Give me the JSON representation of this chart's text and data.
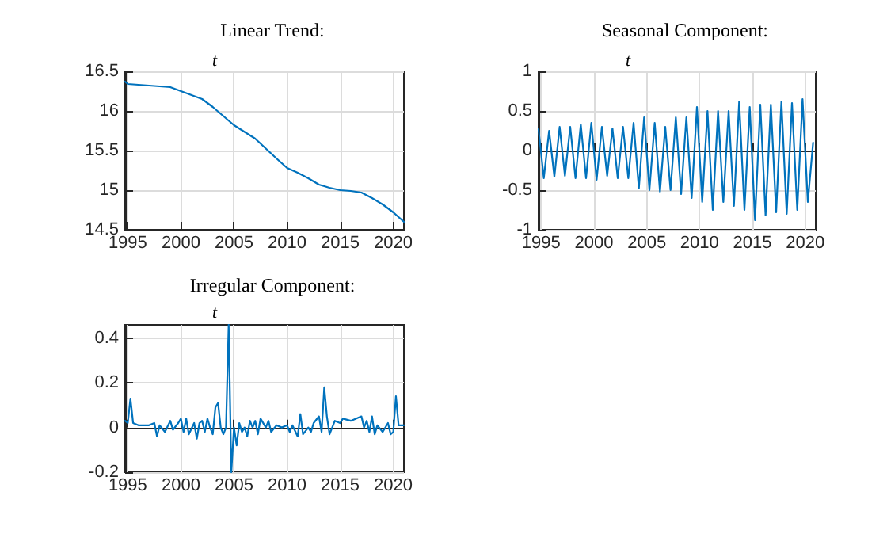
{
  "chart_data": [
    {
      "type": "line",
      "title": "Linear Trend:",
      "subtitle": "t",
      "grid": true,
      "xlim": [
        1994.75,
        2021
      ],
      "xticks": [
        1995,
        2000,
        2005,
        2010,
        2015,
        2020
      ],
      "ylim": [
        14.5,
        16.5
      ],
      "yticks": [
        14.5,
        15,
        15.5,
        16,
        16.5
      ],
      "series": [
        {
          "color": "#0072bd",
          "x": [
            1994.75,
            1995,
            1997,
            1999,
            2000,
            2002,
            2003,
            2005,
            2007,
            2009,
            2010,
            2011,
            2012,
            2013,
            2014,
            2015,
            2016,
            2017,
            2018,
            2019,
            2020,
            2021
          ],
          "values": [
            16.37,
            16.34,
            16.32,
            16.3,
            16.25,
            16.15,
            16.05,
            15.82,
            15.65,
            15.4,
            15.28,
            15.22,
            15.15,
            15.07,
            15.03,
            15.0,
            14.99,
            14.97,
            14.9,
            14.82,
            14.72,
            14.6
          ]
        }
      ]
    },
    {
      "type": "line",
      "title": "Seasonal Component:",
      "subtitle": "t",
      "grid": true,
      "xlim": [
        1994.75,
        2021
      ],
      "xticks": [
        1995,
        2000,
        2005,
        2010,
        2015,
        2020
      ],
      "ylim": [
        -1,
        1
      ],
      "yticks": [
        -1,
        -0.5,
        0,
        0.5,
        1
      ],
      "series": [
        {
          "color": "#0072bd",
          "x": [
            1994.75,
            1995.25,
            1995.75,
            1996.25,
            1996.75,
            1997.25,
            1997.75,
            1998.25,
            1998.75,
            1999.25,
            1999.75,
            2000.25,
            2000.75,
            2001.25,
            2001.75,
            2002.25,
            2002.75,
            2003.25,
            2003.75,
            2004.25,
            2004.75,
            2005.25,
            2005.75,
            2006.25,
            2006.75,
            2007.25,
            2007.75,
            2008.25,
            2008.75,
            2009.25,
            2009.75,
            2010.25,
            2010.75,
            2011.25,
            2011.75,
            2012.25,
            2012.75,
            2013.25,
            2013.75,
            2014.25,
            2014.75,
            2015.25,
            2015.75,
            2016.25,
            2016.75,
            2017.25,
            2017.75,
            2018.25,
            2018.75,
            2019.25,
            2019.75,
            2020.25,
            2020.75
          ],
          "values": [
            0.27,
            -0.35,
            0.25,
            -0.33,
            0.3,
            -0.32,
            0.3,
            -0.35,
            0.33,
            -0.35,
            0.35,
            -0.37,
            0.3,
            -0.32,
            0.28,
            -0.35,
            0.3,
            -0.35,
            0.35,
            -0.48,
            0.42,
            -0.5,
            0.35,
            -0.52,
            0.3,
            -0.5,
            0.42,
            -0.55,
            0.42,
            -0.6,
            0.55,
            -0.65,
            0.5,
            -0.75,
            0.5,
            -0.65,
            0.5,
            -0.7,
            0.62,
            -0.75,
            0.55,
            -0.88,
            0.58,
            -0.82,
            0.58,
            -0.78,
            0.62,
            -0.8,
            0.6,
            -0.75,
            0.65,
            -0.65,
            0.1
          ]
        }
      ]
    },
    {
      "type": "line",
      "title": "Irregular Component:",
      "subtitle": "t",
      "grid": true,
      "xlim": [
        1994.75,
        2021
      ],
      "xticks": [
        1995,
        2000,
        2005,
        2010,
        2015,
        2020
      ],
      "ylim": [
        -0.2,
        0.46
      ],
      "yticks": [
        -0.2,
        0,
        0.2,
        0.4
      ],
      "series": [
        {
          "color": "#0072bd",
          "x": [
            1994.75,
            1995,
            1995.25,
            1995.5,
            1996,
            1997,
            1997.5,
            1997.75,
            1998,
            1998.5,
            1999,
            1999.25,
            1999.75,
            2000,
            2000.25,
            2000.5,
            2000.75,
            2001.25,
            2001.5,
            2001.75,
            2002,
            2002.25,
            2002.5,
            2002.75,
            2003,
            2003.25,
            2003.5,
            2003.75,
            2004,
            2004.25,
            2004.5,
            2004.75,
            2005,
            2005.25,
            2005.5,
            2005.75,
            2006,
            2006.25,
            2006.5,
            2006.75,
            2007,
            2007.25,
            2007.5,
            2008,
            2008.25,
            2008.5,
            2009,
            2009.5,
            2010,
            2010.25,
            2010.5,
            2011,
            2011.25,
            2011.5,
            2012,
            2012.25,
            2012.5,
            2013,
            2013.25,
            2013.5,
            2013.75,
            2014,
            2014.25,
            2014.5,
            2015,
            2015.25,
            2016,
            2017,
            2017.25,
            2017.5,
            2017.75,
            2018,
            2018.25,
            2018.5,
            2019,
            2019.5,
            2019.75,
            2020,
            2020.25,
            2020.5,
            2021
          ],
          "values": [
            0.03,
            0.02,
            0.13,
            0.02,
            0.01,
            0.01,
            0.02,
            -0.04,
            0.01,
            -0.02,
            0.03,
            -0.01,
            0.02,
            0.04,
            -0.02,
            0.04,
            -0.03,
            0.02,
            -0.05,
            0.02,
            0.03,
            -0.02,
            0.04,
            0.0,
            -0.03,
            0.09,
            0.11,
            0.0,
            -0.03,
            0.0,
            0.46,
            -0.2,
            0.0,
            -0.08,
            0.02,
            -0.02,
            0.0,
            -0.04,
            0.03,
            0.0,
            0.03,
            -0.03,
            0.04,
            0.0,
            0.03,
            -0.02,
            0.01,
            0.0,
            0.01,
            -0.02,
            0.01,
            -0.04,
            0.06,
            -0.03,
            0.0,
            -0.02,
            0.02,
            0.05,
            -0.02,
            0.18,
            0.05,
            -0.03,
            0.0,
            0.03,
            0.02,
            0.04,
            0.03,
            0.05,
            0.0,
            0.03,
            -0.02,
            0.05,
            -0.03,
            0.01,
            -0.02,
            0.02,
            -0.03,
            -0.02,
            0.14,
            0.01,
            0.01
          ]
        }
      ]
    }
  ]
}
